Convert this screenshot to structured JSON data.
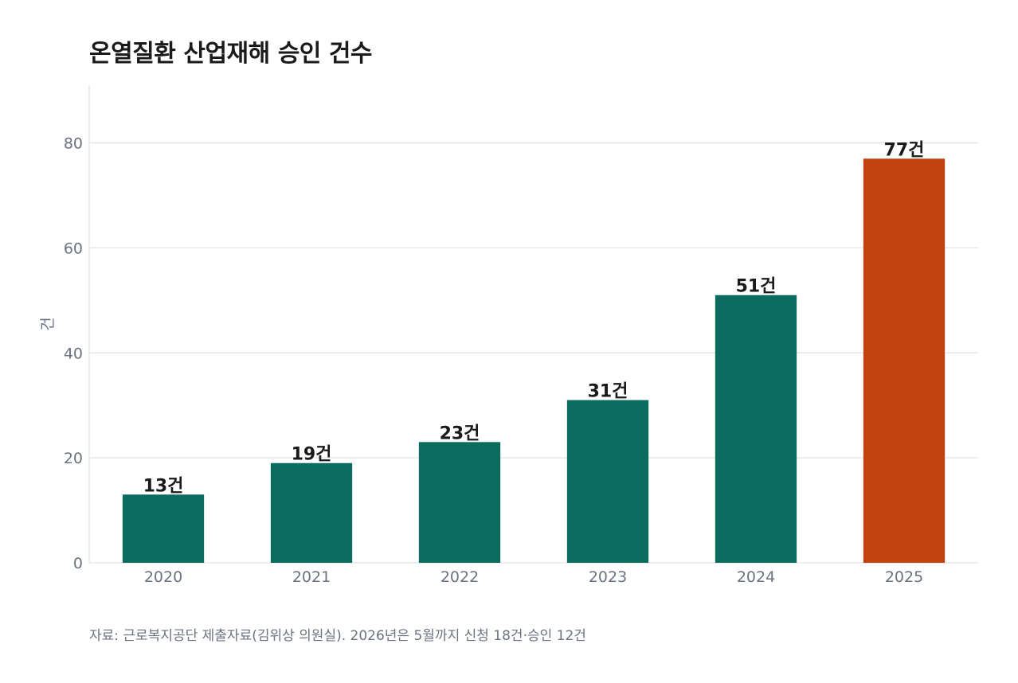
{
  "chart_data": {
    "type": "bar",
    "title": "온열질환 산업재해 승인 건수",
    "categories": [
      "2020",
      "2021",
      "2022",
      "2023",
      "2024",
      "2025"
    ],
    "values": [
      13,
      19,
      23,
      31,
      51,
      77
    ],
    "data_labels": [
      "13건",
      "19건",
      "23건",
      "31건",
      "51건",
      "77건"
    ],
    "ylabel": "건",
    "xlabel": "",
    "ylim": [
      0,
      91
    ],
    "yticks": [
      0,
      20,
      40,
      60,
      80
    ],
    "grid": true,
    "bar_colors": [
      "#0b6b5f",
      "#0b6b5f",
      "#0b6b5f",
      "#0b6b5f",
      "#0b6b5f",
      "#c2410c"
    ]
  },
  "footer": {
    "source": "자료: 근로복지공단 제출자료(김위상 의원실). 2026년은 5월까지 신청 18건·승인 12건"
  },
  "colors": {
    "bar_default": "#0b6b5f",
    "bar_highlight": "#c2410c",
    "grid": "#e5e7eb",
    "tick_text": "#6b7280",
    "label_text": "#1a1a1a"
  }
}
